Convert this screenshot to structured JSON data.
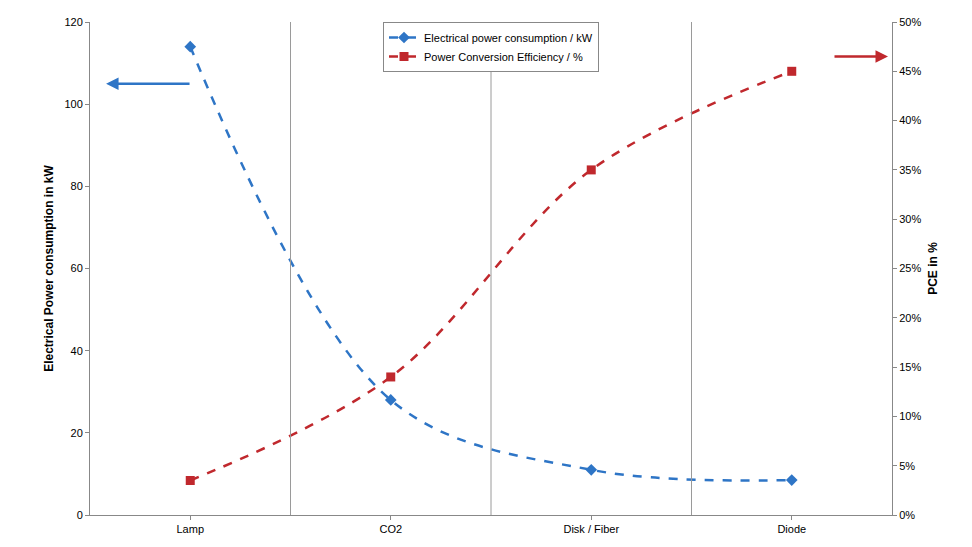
{
  "chart_data": {
    "type": "line",
    "categories": [
      "Lamp",
      "CO2",
      "Disk / Fiber",
      "Diode"
    ],
    "ylabel": "Electrical Power consumption in kW",
    "y2label": "PCE in %",
    "ylim": [
      0,
      120
    ],
    "yticks": [
      0,
      20,
      40,
      60,
      80,
      100,
      120
    ],
    "y2lim": [
      0,
      50
    ],
    "y2ticks": [
      {
        "value": 0,
        "label": "0%"
      },
      {
        "value": 5,
        "label": "5%"
      },
      {
        "value": 10,
        "label": "10%"
      },
      {
        "value": 15,
        "label": "15%"
      },
      {
        "value": 20,
        "label": "20%"
      },
      {
        "value": 25,
        "label": "25%"
      },
      {
        "value": 30,
        "label": "30%"
      },
      {
        "value": 35,
        "label": "35%"
      },
      {
        "value": 40,
        "label": "40%"
      },
      {
        "value": 45,
        "label": "45%"
      },
      {
        "value": 50,
        "label": "50%"
      }
    ],
    "legend": "top",
    "series": [
      {
        "name": "Electrical power consumption / kW",
        "color": "#2e75c6",
        "marker": "diamond",
        "line_style": "dashed",
        "values": [
          114,
          28,
          11,
          8.5
        ]
      },
      {
        "name": "Power Conversion Efficiency / %",
        "color": "#c0282d",
        "marker": "square",
        "line_style": "dashed",
        "axis": "y2",
        "values": [
          3.5,
          14,
          35,
          45
        ]
      }
    ]
  }
}
